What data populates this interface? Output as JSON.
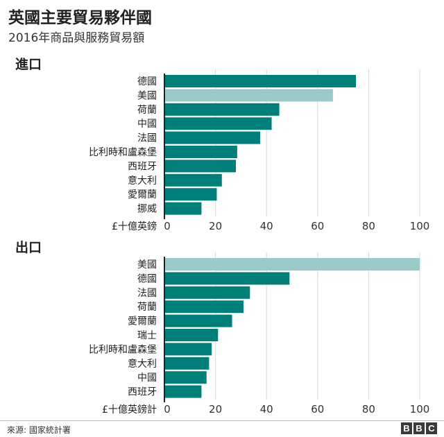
{
  "title": "英國主要貿易夥伴國",
  "subtitle": "2016年商品與服務貿易額",
  "colors": {
    "bar": "#007f7a",
    "highlight": "#9ccacb",
    "grid": "#d8d8d8",
    "axis": "#222222"
  },
  "chart_data": [
    {
      "type": "bar",
      "title": "進口",
      "unit_label": "£十億英鎊",
      "categories": [
        "德國",
        "美國",
        "荷蘭",
        "中國",
        "法國",
        "比利時和盧森堡",
        "西班牙",
        "意大利",
        "愛爾蘭",
        "挪威"
      ],
      "values": [
        75,
        66,
        45,
        42,
        37.5,
        28.5,
        28,
        22.5,
        20.5,
        14.5
      ],
      "highlight": [
        "美國"
      ],
      "xlim": [
        0,
        100
      ],
      "xticks": [
        0,
        20,
        40,
        60,
        80,
        100
      ],
      "grid": true
    },
    {
      "type": "bar",
      "title": "出口",
      "unit_label": "£十億英鎊計",
      "categories": [
        "美國",
        "德國",
        "法國",
        "荷蘭",
        "愛爾蘭",
        "瑞士",
        "比利時和盧森堡",
        "意大利",
        "中國",
        "西班牙"
      ],
      "values": [
        100,
        49,
        33.5,
        31,
        26.5,
        21,
        18.5,
        17.5,
        16.5,
        14.5
      ],
      "highlight": [
        "美國"
      ],
      "xlim": [
        0,
        100
      ],
      "xticks": [
        0,
        20,
        40,
        60,
        80,
        100
      ],
      "grid": true
    }
  ],
  "footer": {
    "source": "來源: 國家統計署",
    "logo": "BBC"
  }
}
